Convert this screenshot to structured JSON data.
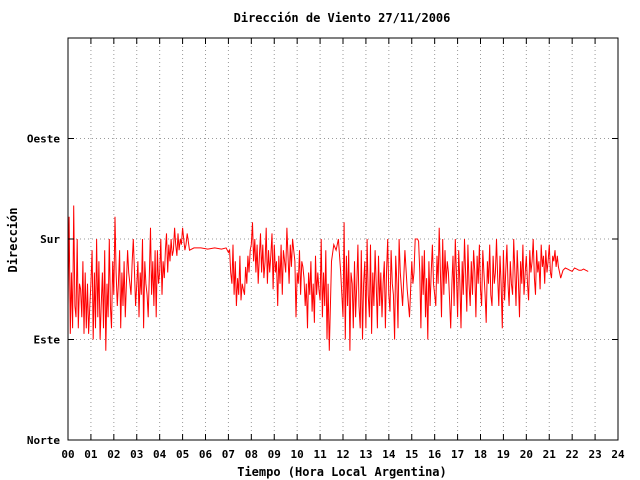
{
  "chart_data": {
    "type": "line",
    "title": "Dirección de Viento 27/11/2006",
    "xlabel": "Tiempo (Hora Local Argentina)",
    "ylabel": "Dirección",
    "x_ticks": [
      "00",
      "01",
      "02",
      "03",
      "04",
      "05",
      "06",
      "07",
      "08",
      "09",
      "10",
      "11",
      "12",
      "13",
      "14",
      "15",
      "16",
      "17",
      "18",
      "19",
      "20",
      "21",
      "22",
      "23",
      "24"
    ],
    "y_ticks": [
      {
        "value": 0,
        "label": "Norte"
      },
      {
        "value": 90,
        "label": "Este"
      },
      {
        "value": 180,
        "label": "Sur"
      },
      {
        "value": 270,
        "label": "Oeste"
      }
    ],
    "xlim": [
      0,
      24
    ],
    "ylim": [
      0,
      360
    ],
    "grid": true,
    "series": [
      {
        "color": "#ff0000",
        "x": [
          0.0,
          0.05,
          0.1,
          0.15,
          0.2,
          0.25,
          0.3,
          0.35,
          0.4,
          0.45,
          0.5,
          0.55,
          0.6,
          0.65,
          0.7,
          0.75,
          0.8,
          0.85,
          0.9,
          0.95,
          1.0,
          1.05,
          1.1,
          1.15,
          1.2,
          1.25,
          1.3,
          1.35,
          1.4,
          1.45,
          1.5,
          1.55,
          1.6,
          1.65,
          1.7,
          1.75,
          1.8,
          1.85,
          1.9,
          1.95,
          2.0,
          2.05,
          2.1,
          2.15,
          2.2,
          2.25,
          2.3,
          2.35,
          2.4,
          2.45,
          2.5,
          2.55,
          2.6,
          2.65,
          2.7,
          2.75,
          2.8,
          2.85,
          2.9,
          2.95,
          3.0,
          3.05,
          3.1,
          3.15,
          3.2,
          3.25,
          3.3,
          3.35,
          3.4,
          3.45,
          3.5,
          3.55,
          3.6,
          3.65,
          3.7,
          3.75,
          3.8,
          3.85,
          3.9,
          3.95,
          4.0,
          4.05,
          4.1,
          4.15,
          4.2,
          4.25,
          4.3,
          4.35,
          4.4,
          4.45,
          4.5,
          4.55,
          4.6,
          4.65,
          4.7,
          4.75,
          4.8,
          4.85,
          4.9,
          4.95,
          5.0,
          5.05,
          5.1,
          5.15,
          5.2,
          5.3,
          5.5,
          5.8,
          6.1,
          6.4,
          6.7,
          6.9,
          7.0,
          7.05,
          7.1,
          7.15,
          7.2,
          7.25,
          7.3,
          7.35,
          7.4,
          7.45,
          7.5,
          7.55,
          7.6,
          7.65,
          7.7,
          7.75,
          7.8,
          7.85,
          7.9,
          7.95,
          8.0,
          8.05,
          8.1,
          8.15,
          8.2,
          8.25,
          8.3,
          8.35,
          8.4,
          8.45,
          8.5,
          8.55,
          8.6,
          8.65,
          8.7,
          8.75,
          8.8,
          8.85,
          8.9,
          8.95,
          9.0,
          9.05,
          9.1,
          9.15,
          9.2,
          9.25,
          9.3,
          9.35,
          9.4,
          9.45,
          9.5,
          9.55,
          9.6,
          9.65,
          9.7,
          9.75,
          9.8,
          9.85,
          9.9,
          9.95,
          10.0,
          10.05,
          10.1,
          10.15,
          10.2,
          10.25,
          10.3,
          10.35,
          10.4,
          10.45,
          10.5,
          10.55,
          10.6,
          10.65,
          10.7,
          10.75,
          10.8,
          10.85,
          10.9,
          10.95,
          11.0,
          11.05,
          11.1,
          11.15,
          11.2,
          11.25,
          11.3,
          11.35,
          11.4,
          11.45,
          11.5,
          11.6,
          11.7,
          11.8,
          11.9,
          12.0,
          12.05,
          12.1,
          12.15,
          12.2,
          12.25,
          12.3,
          12.35,
          12.4,
          12.45,
          12.5,
          12.55,
          12.6,
          12.65,
          12.7,
          12.75,
          12.8,
          12.85,
          12.9,
          12.95,
          13.0,
          13.05,
          13.1,
          13.15,
          13.2,
          13.25,
          13.3,
          13.35,
          13.4,
          13.45,
          13.5,
          13.55,
          13.6,
          13.65,
          13.7,
          13.75,
          13.8,
          13.85,
          13.9,
          13.95,
          14.0,
          14.05,
          14.1,
          14.15,
          14.2,
          14.25,
          14.3,
          14.35,
          14.4,
          14.45,
          14.5,
          14.6,
          14.7,
          14.8,
          14.9,
          15.0,
          15.05,
          15.1,
          15.15,
          15.2,
          15.25,
          15.3,
          15.35,
          15.4,
          15.45,
          15.5,
          15.55,
          15.6,
          15.65,
          15.7,
          15.75,
          15.8,
          15.85,
          15.9,
          15.95,
          16.0,
          16.05,
          16.1,
          16.15,
          16.2,
          16.25,
          16.3,
          16.35,
          16.4,
          16.45,
          16.5,
          16.55,
          16.6,
          16.65,
          16.7,
          16.75,
          16.8,
          16.85,
          16.9,
          16.95,
          17.0,
          17.05,
          17.1,
          17.15,
          17.2,
          17.25,
          17.3,
          17.35,
          17.4,
          17.45,
          17.5,
          17.55,
          17.6,
          17.65,
          17.7,
          17.75,
          17.8,
          17.85,
          17.9,
          17.95,
          18.0,
          18.05,
          18.1,
          18.15,
          18.2,
          18.25,
          18.3,
          18.35,
          18.4,
          18.45,
          18.5,
          18.55,
          18.6,
          18.65,
          18.7,
          18.75,
          18.8,
          18.85,
          18.9,
          18.95,
          19.0,
          19.05,
          19.1,
          19.15,
          19.2,
          19.25,
          19.3,
          19.35,
          19.4,
          19.45,
          19.5,
          19.55,
          19.6,
          19.65,
          19.7,
          19.75,
          19.8,
          19.85,
          19.9,
          19.95,
          20.0,
          20.05,
          20.1,
          20.15,
          20.2,
          20.25,
          20.3,
          20.35,
          20.4,
          20.45,
          20.5,
          20.55,
          20.6,
          20.65,
          20.7,
          20.75,
          20.8,
          20.85,
          20.9,
          20.95,
          21.0,
          21.05,
          21.1,
          21.15,
          21.2,
          21.25,
          21.3,
          21.35,
          21.4,
          21.45,
          21.5,
          21.6,
          21.7,
          21.8,
          21.9,
          22.0,
          22.1,
          22.2,
          22.3,
          22.4,
          22.5,
          22.6,
          22.7
        ],
        "y": [
          120,
          200,
          95,
          150,
          100,
          210,
          120,
          110,
          180,
          100,
          140,
          135,
          110,
          160,
          95,
          150,
          100,
          140,
          95,
          120,
          140,
          170,
          90,
          150,
          100,
          180,
          110,
          160,
          90,
          120,
          150,
          100,
          170,
          80,
          140,
          110,
          180,
          120,
          100,
          160,
          130,
          200,
          150,
          120,
          140,
          170,
          100,
          150,
          120,
          160,
          110,
          140,
          170,
          150,
          140,
          130,
          160,
          180,
          150,
          120,
          140,
          160,
          110,
          150,
          130,
          180,
          100,
          160,
          140,
          130,
          110,
          150,
          190,
          130,
          160,
          120,
          170,
          110,
          170,
          140,
          150,
          180,
          130,
          160,
          145,
          170,
          185,
          150,
          175,
          160,
          180,
          165,
          170,
          190,
          175,
          165,
          185,
          170,
          180,
          175,
          190,
          180,
          170,
          175,
          185,
          170,
          172,
          172,
          171,
          172,
          171,
          172,
          168,
          170,
          150,
          140,
          175,
          130,
          160,
          120,
          145,
          130,
          165,
          125,
          140,
          135,
          130,
          155,
          140,
          165,
          150,
          170,
          175,
          195,
          160,
          180,
          150,
          175,
          140,
          165,
          185,
          150,
          175,
          145,
          160,
          190,
          140,
          170,
          150,
          165,
          185,
          135,
          175,
          150,
          160,
          120,
          165,
          140,
          175,
          130,
          170,
          160,
          150,
          190,
          165,
          140,
          175,
          155,
          180,
          170,
          160,
          110,
          150,
          140,
          170,
          130,
          160,
          155,
          145,
          120,
          140,
          100,
          150,
          130,
          160,
          115,
          140,
          105,
          165,
          130,
          150,
          135,
          125,
          180,
          110,
          150,
          120,
          170,
          90,
          140,
          80,
          120,
          160,
          175,
          170,
          180,
          150,
          110,
          195,
          90,
          165,
          120,
          170,
          80,
          150,
          140,
          100,
          160,
          110,
          140,
          175,
          120,
          100,
          170,
          90,
          140,
          160,
          100,
          180,
          130,
          110,
          175,
          95,
          150,
          120,
          170,
          140,
          100,
          165,
          120,
          150,
          110,
          140,
          160,
          100,
          150,
          180,
          130,
          115,
          170,
          140,
          130,
          90,
          165,
          140,
          100,
          180,
          150,
          120,
          170,
          135,
          110,
          160,
          140,
          150,
          180,
          180,
          180,
          178,
          150,
          100,
          165,
          130,
          170,
          110,
          145,
          90,
          160,
          120,
          150,
          175,
          140,
          130,
          120,
          165,
          140,
          190,
          150,
          110,
          180,
          130,
          170,
          140,
          160,
          150,
          125,
          100,
          140,
          165,
          120,
          180,
          150,
          110,
          170,
          140,
          100,
          160,
          130,
          180,
          150,
          115,
          175,
          140,
          120,
          160,
          130,
          170,
          150,
          110,
          165,
          140,
          175,
          135,
          120,
          170,
          150,
          130,
          105,
          160,
          140,
          175,
          130,
          120,
          165,
          140,
          150,
          180,
          145,
          120,
          165,
          140,
          100,
          170,
          125,
          150,
          175,
          140,
          120,
          160,
          140,
          130,
          180,
          150,
          120,
          170,
          145,
          110,
          160,
          140,
          175,
          130,
          150,
          165,
          140,
          125,
          170,
          150,
          160,
          180,
          145,
          130,
          170,
          150,
          160,
          135,
          175,
          155,
          165,
          140,
          170,
          150,
          160,
          175,
          150,
          145,
          165,
          160,
          170,
          155,
          165,
          155,
          150,
          145,
          152,
          154,
          153,
          152,
          151,
          154,
          153,
          152,
          152,
          153,
          152,
          151
        ]
      }
    ]
  }
}
